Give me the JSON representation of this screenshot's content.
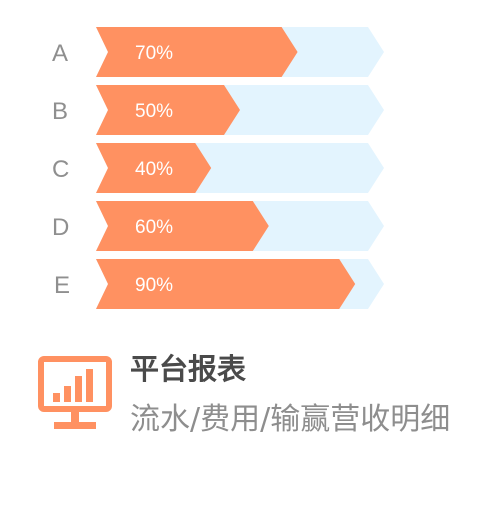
{
  "chart_data": {
    "type": "bar",
    "orientation": "horizontal",
    "categories": [
      "A",
      "B",
      "C",
      "D",
      "E"
    ],
    "values": [
      70,
      50,
      40,
      60,
      90
    ],
    "value_labels": [
      "70%",
      "50%",
      "40%",
      "60%",
      "90%"
    ],
    "max": 100,
    "colors": {
      "bar": "#ff9161",
      "track": "#e3f4fe"
    }
  },
  "card": {
    "icon": "monitor-chart-icon",
    "icon_color": "#ff9161",
    "title": "平台报表",
    "description": "流水/费用/输赢营收明细"
  }
}
